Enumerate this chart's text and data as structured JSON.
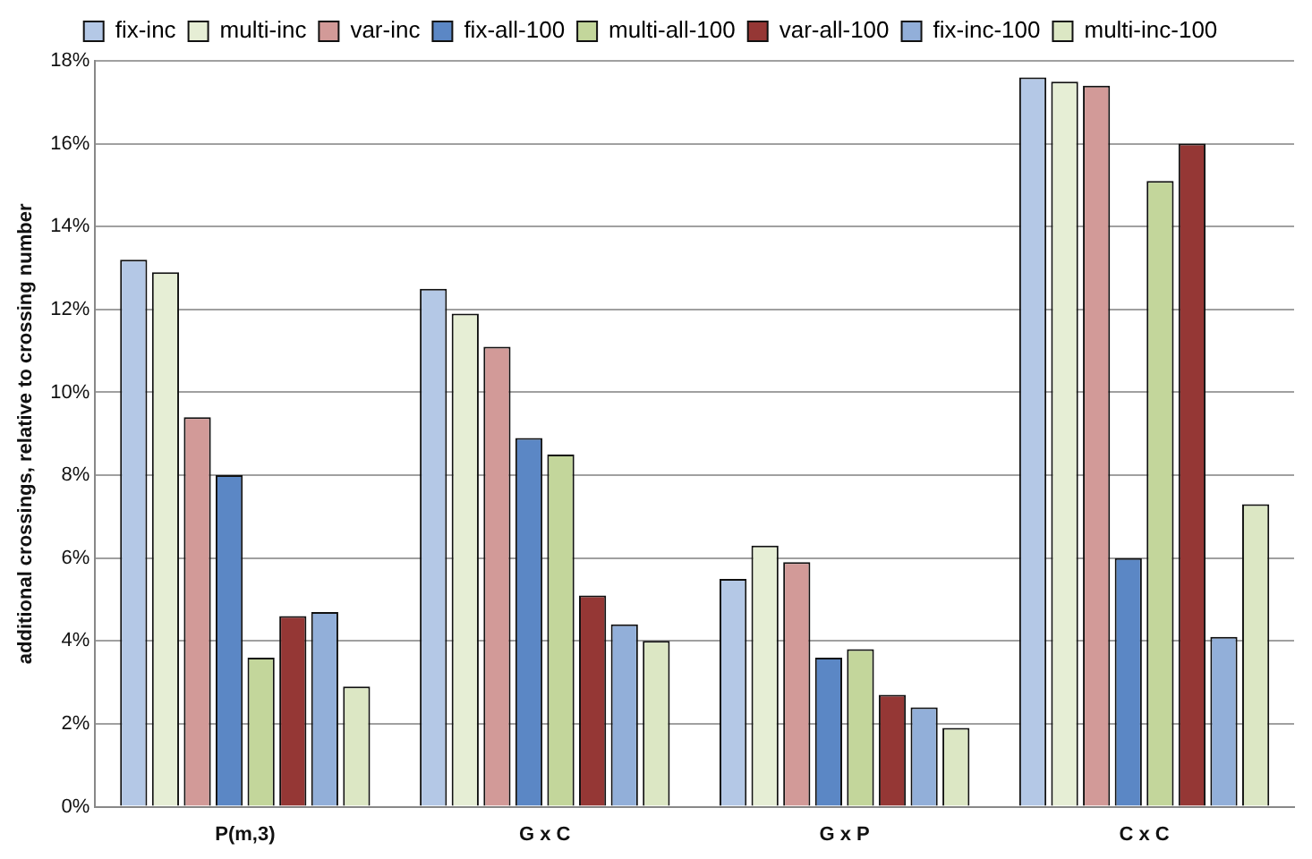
{
  "chart_data": {
    "type": "bar",
    "ylabel": "additional crossings, relative to crossing number",
    "categories": [
      "P(m,3)",
      "G x C",
      "G x P",
      "C x C"
    ],
    "series": [
      {
        "name": "fix-inc",
        "color": "#b4c8e6",
        "values": [
          13.2,
          12.5,
          5.5,
          17.6
        ]
      },
      {
        "name": "multi-inc",
        "color": "#e6eed5",
        "values": [
          12.9,
          11.9,
          6.3,
          17.5
        ]
      },
      {
        "name": "var-inc",
        "color": "#d29a98",
        "values": [
          9.4,
          11.1,
          5.9,
          17.4
        ]
      },
      {
        "name": "fix-all-100",
        "color": "#5b87c5",
        "values": [
          8.0,
          8.9,
          3.6,
          6.0
        ]
      },
      {
        "name": "multi-all-100",
        "color": "#c3d69b",
        "values": [
          3.6,
          8.5,
          3.8,
          15.1
        ]
      },
      {
        "name": "var-all-100",
        "color": "#953735",
        "values": [
          4.6,
          5.1,
          2.7,
          16.0
        ]
      },
      {
        "name": "fix-inc-100",
        "color": "#92afd9",
        "values": [
          4.7,
          4.4,
          2.4,
          4.1
        ]
      },
      {
        "name": "multi-inc-100",
        "color": "#dce7c4",
        "values": [
          2.9,
          4.0,
          1.9,
          7.3
        ]
      }
    ],
    "ylim": [
      0,
      18
    ],
    "yticks": [
      {
        "value": 0,
        "label": "0%"
      },
      {
        "value": 2,
        "label": "2%"
      },
      {
        "value": 4,
        "label": "4%"
      },
      {
        "value": 6,
        "label": "6%"
      },
      {
        "value": 8,
        "label": "8%"
      },
      {
        "value": 10,
        "label": "10%"
      },
      {
        "value": 12,
        "label": "12%"
      },
      {
        "value": 14,
        "label": "14%"
      },
      {
        "value": 16,
        "label": "16%"
      },
      {
        "value": 18,
        "label": "18%"
      }
    ],
    "grid": "y",
    "legend": "top"
  }
}
